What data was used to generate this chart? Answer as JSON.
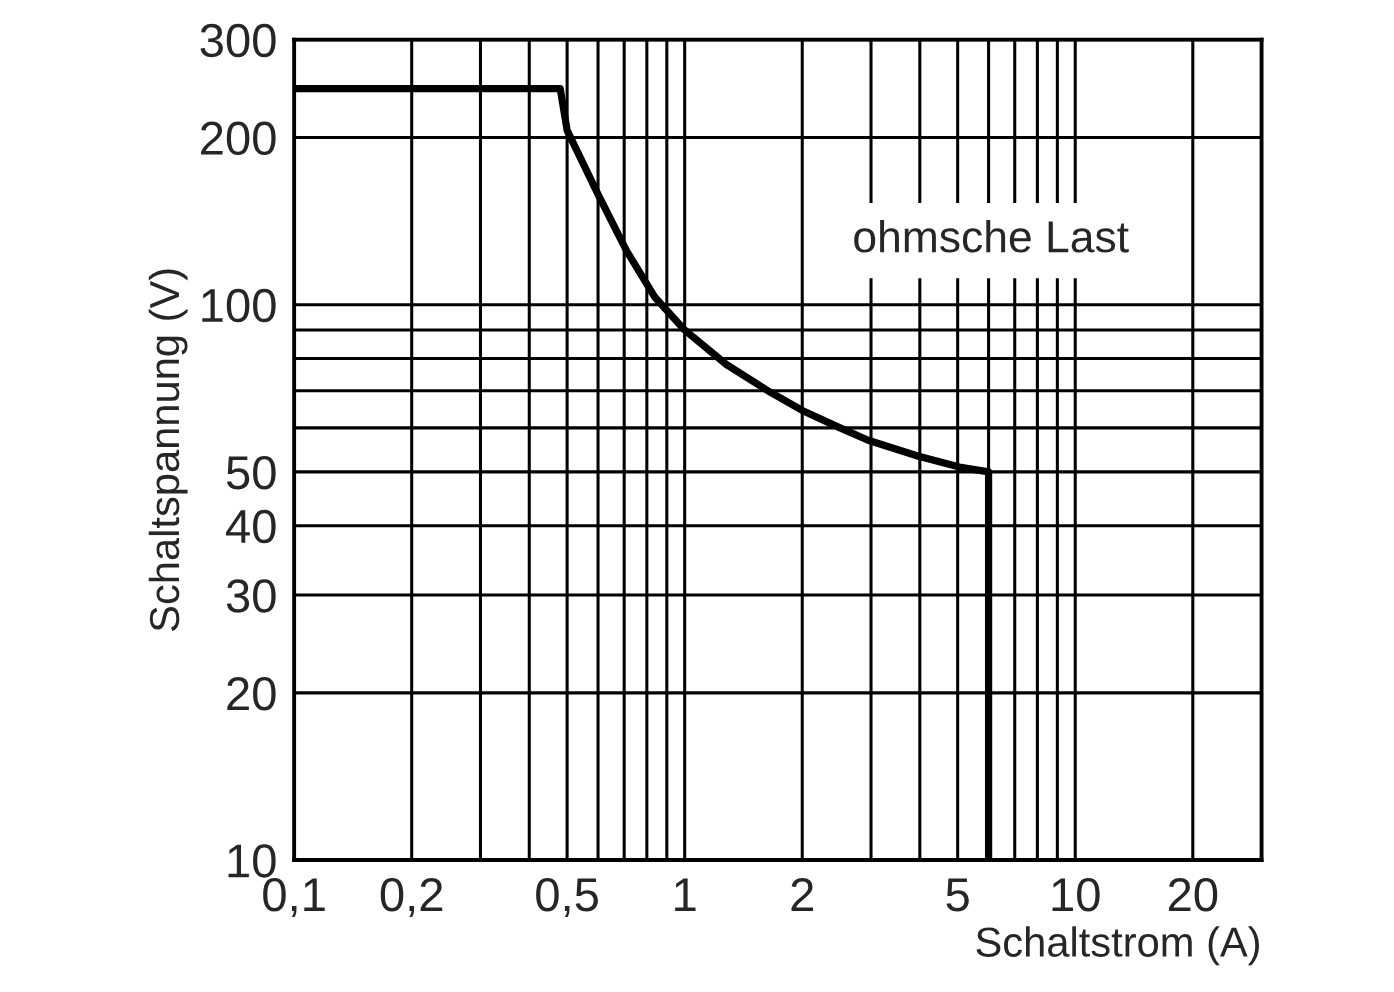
{
  "chart_data": {
    "type": "line",
    "xlabel": "Schaltstrom (A)",
    "ylabel": "Schaltspannung (V)",
    "annotations": [
      "ohmsche Last"
    ],
    "log": "xy",
    "grid": true,
    "legend": false,
    "xlim": [
      0.1,
      30
    ],
    "ylim": [
      10,
      300
    ],
    "xticks": [
      {
        "value": 0.1,
        "label": "0,1"
      },
      {
        "value": 0.2,
        "label": "0,2"
      },
      {
        "value": 0.3,
        "label": null
      },
      {
        "value": 0.4,
        "label": null
      },
      {
        "value": 0.5,
        "label": "0,5"
      },
      {
        "value": 0.6,
        "label": null
      },
      {
        "value": 0.7,
        "label": null
      },
      {
        "value": 0.8,
        "label": null
      },
      {
        "value": 0.9,
        "label": null
      },
      1,
      2,
      {
        "value": 3,
        "label": null
      },
      {
        "value": 4,
        "label": null
      },
      5,
      {
        "value": 6,
        "label": null
      },
      {
        "value": 7,
        "label": null
      },
      {
        "value": 8,
        "label": null
      },
      {
        "value": 9,
        "label": null
      },
      10,
      20,
      {
        "value": 30,
        "label": null
      }
    ],
    "yticks": [
      10,
      20,
      30,
      40,
      50,
      {
        "value": 60,
        "label": null
      },
      {
        "value": 70,
        "label": null
      },
      {
        "value": 80,
        "label": null
      },
      {
        "value": 90,
        "label": null
      },
      100,
      200,
      300
    ],
    "series": [
      {
        "color": "#000000",
        "x": [
          0.1,
          0.48,
          0.5,
          0.6,
          0.71,
          0.84,
          1.0,
          1.28,
          1.66,
          2.0,
          2.5,
          2.95,
          3.95,
          5.05,
          6.0,
          6.0
        ],
        "values": [
          245,
          245,
          206,
          158,
          125,
          103,
          90,
          78,
          69.5,
          64.5,
          60,
          57,
          53.4,
          51,
          50,
          10
        ]
      }
    ]
  }
}
